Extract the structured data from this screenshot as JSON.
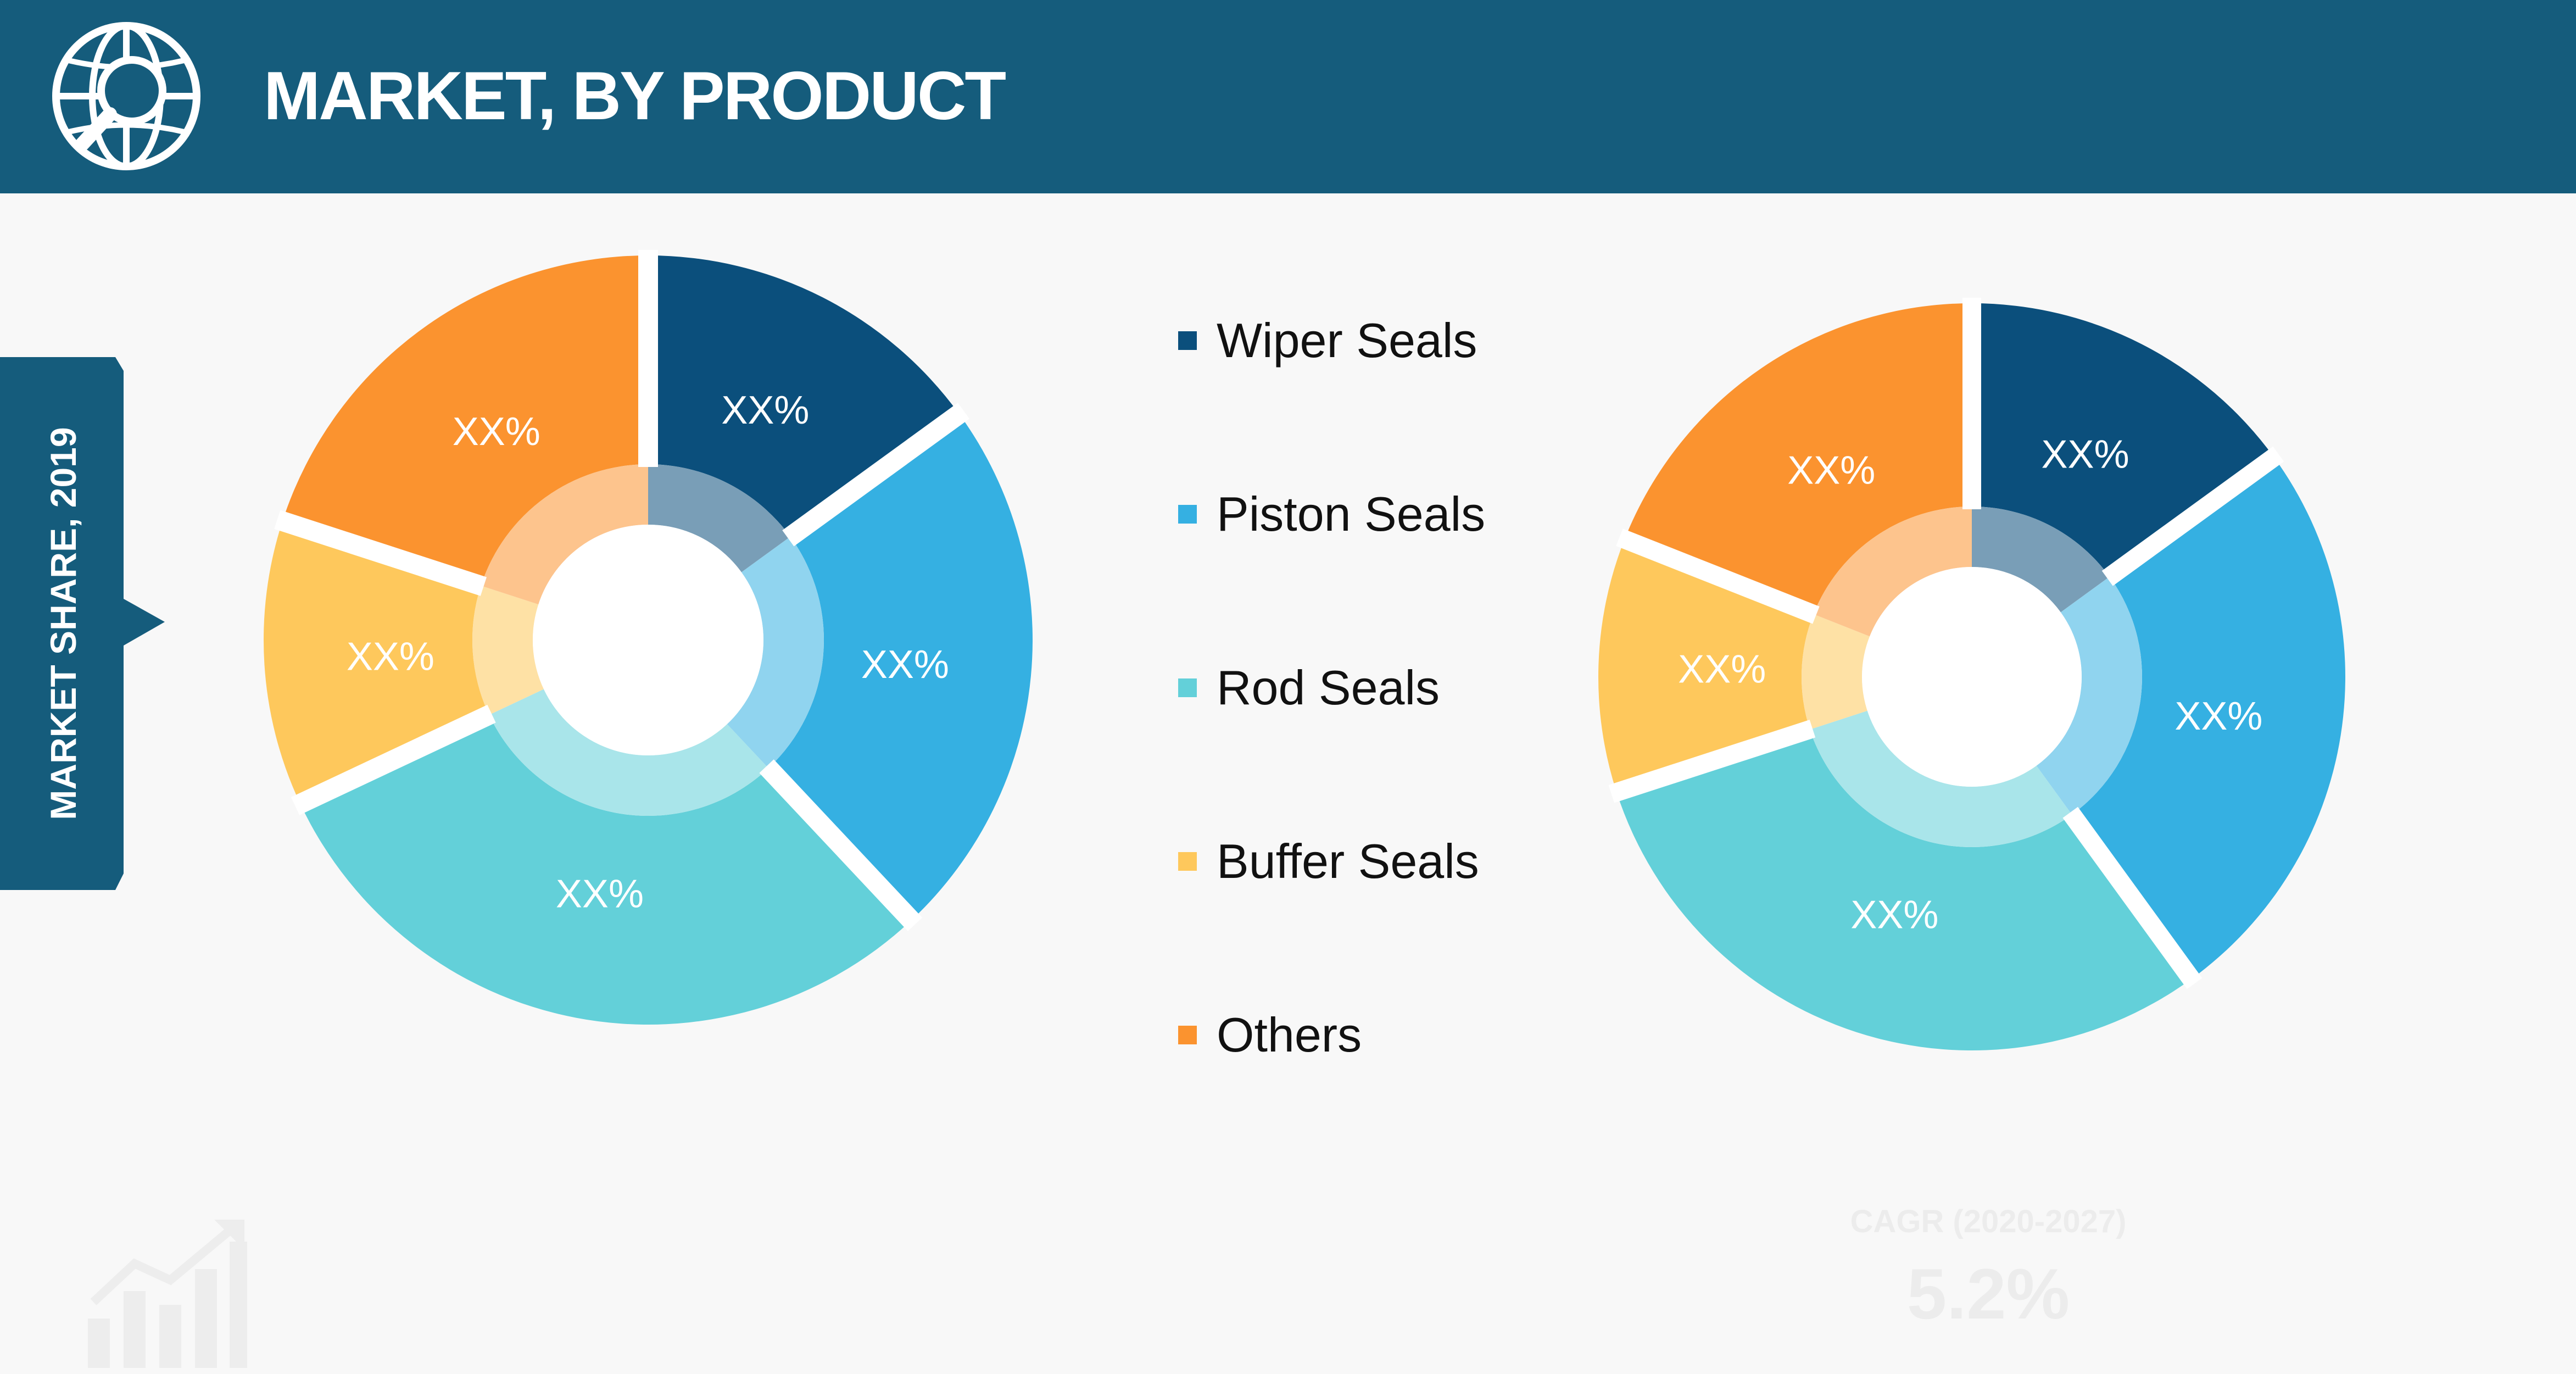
{
  "header": {
    "title": "MARKET, BY PRODUCT",
    "icon": "globe-magnifier-icon",
    "background_color": "#155c7c"
  },
  "side_tab": {
    "label": "MARKET SHARE, 2019",
    "background_color": "#155c7c"
  },
  "chart_data": [
    {
      "type": "pie",
      "style": "donut",
      "categories": [
        "Wiper Seals",
        "Piston Seals",
        "Rod Seals",
        "Buffer Seals",
        "Others"
      ],
      "values": [
        15,
        23,
        30,
        12,
        20
      ],
      "data_labels": [
        "XX%",
        "XX%",
        "XX%",
        "XX%",
        "XX%"
      ],
      "colors": [
        "#0b4f7c",
        "#35b0e2",
        "#63d0d9",
        "#fec85c",
        "#fb932f"
      ]
    },
    {
      "type": "pie",
      "style": "donut",
      "categories": [
        "Wiper Seals",
        "Piston Seals",
        "Rod Seals",
        "Buffer Seals",
        "Others"
      ],
      "values": [
        15,
        25,
        30,
        11,
        19
      ],
      "data_labels": [
        "XX%",
        "XX%",
        "XX%",
        "XX%",
        "XX%"
      ],
      "colors": [
        "#0b4f7c",
        "#35b0e2",
        "#63d0d9",
        "#fec85c",
        "#fb932f"
      ]
    }
  ],
  "legend": {
    "placement": "center",
    "items": [
      {
        "label": "Wiper Seals",
        "color": "#0b4f7c"
      },
      {
        "label": "Piston Seals",
        "color": "#35b0e2"
      },
      {
        "label": "Rod Seals",
        "color": "#63d0d9"
      },
      {
        "label": "Buffer Seals",
        "color": "#fec85c"
      },
      {
        "label": "Others",
        "color": "#fb932f"
      }
    ]
  },
  "footer": {
    "growth_icon": "bar-chart-growth-icon",
    "cagr_label": "CAGR (2020-2027)",
    "cagr_value": "5.2%"
  }
}
